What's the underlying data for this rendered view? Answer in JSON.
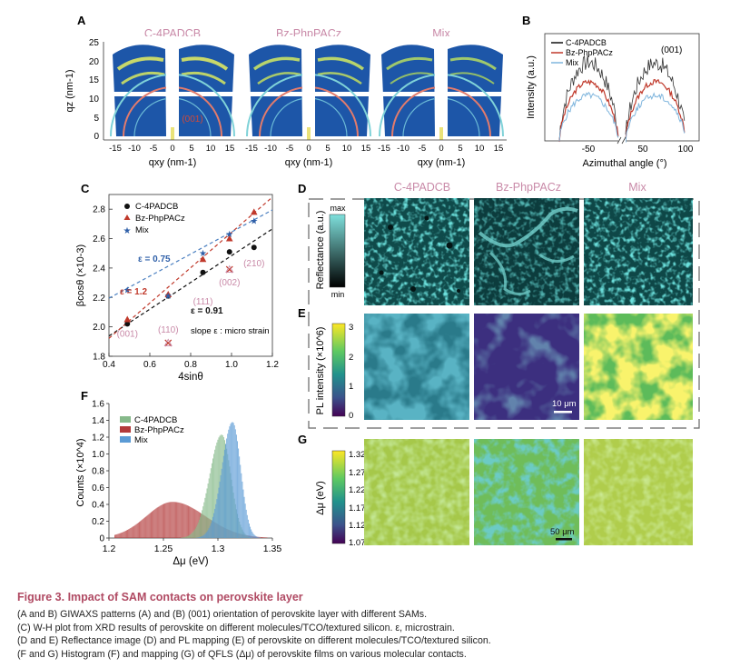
{
  "panel_letters": {
    "A": "A",
    "B": "B",
    "C": "C",
    "D": "D",
    "E": "E",
    "F": "F",
    "G": "G"
  },
  "materials": [
    "C-4PADCB",
    "Bz-PhpPACz",
    "Mix"
  ],
  "colors": {
    "pink_label": "#c98aa8",
    "c4padcb": "#111111",
    "bz": "#c0392b",
    "mix": "#4a7fc0",
    "hist_c4": "#86b98a",
    "hist_bz": "#b23a3a",
    "hist_mix": "#5b9bd5",
    "caption_title": "#b04a63"
  },
  "panelA": {
    "y_label": "qz (nm-1)",
    "x_label": "qxy (nm-1)",
    "y_ticks": [
      "25",
      "20",
      "15",
      "10",
      "5",
      "0"
    ],
    "x_ticks": [
      "-15",
      "-10",
      "-5",
      "0",
      "5",
      "10",
      "15"
    ],
    "annotation": "(001)"
  },
  "panelB": {
    "y_label": "Intensity (a.u.)",
    "x_label": "Azimuthal angle (°)",
    "x_ticks": [
      "-50",
      "50",
      "100"
    ],
    "annotation": "(001)",
    "legend": [
      "C-4PADCB",
      "Bz-PhpPACz",
      "Mix"
    ]
  },
  "panelD": {
    "colorbar_max": "max",
    "colorbar_min": "min",
    "ylabel": "Reflectance (a.u.)"
  },
  "panelE": {
    "ylabel": "PL intensity (×10^6)",
    "colorbar_ticks": [
      "3",
      "2",
      "1",
      "0"
    ],
    "scale_bar": "10 μm"
  },
  "panelG": {
    "ylabel": "Δμ (eV)",
    "colorbar_ticks": [
      "1.32",
      "1.27",
      "1.22",
      "1.17",
      "1.12",
      "1.07"
    ],
    "scale_bar": "50 μm"
  },
  "chart_data": [
    {
      "id": "C",
      "type": "scatter",
      "title": "",
      "xlabel": "4sinθ",
      "ylabel": "βcosθ (×10-3)",
      "xlim": [
        0.4,
        1.2
      ],
      "ylim": [
        1.8,
        2.9
      ],
      "x_ticks": [
        0.4,
        0.6,
        0.8,
        1.0,
        1.2
      ],
      "y_ticks": [
        1.8,
        2.0,
        2.2,
        2.4,
        2.6,
        2.8
      ],
      "series": [
        {
          "name": "C-4PADCB",
          "marker": "circle",
          "x": [
            0.49,
            0.69,
            0.86,
            0.99,
            1.11
          ],
          "y": [
            2.02,
            2.21,
            2.37,
            2.51,
            2.54
          ],
          "fit": {
            "slope": 0.91,
            "intercept": 1.574
          }
        },
        {
          "name": "Bz-PhpPACz",
          "marker": "triangle",
          "x": [
            0.49,
            0.69,
            0.86,
            0.99,
            1.11
          ],
          "y": [
            2.05,
            2.22,
            2.46,
            2.6,
            2.78
          ],
          "fit": {
            "slope": 1.2,
            "intercept": 1.442
          }
        },
        {
          "name": "Mix",
          "marker": "star",
          "x": [
            0.49,
            0.69,
            0.86,
            0.99,
            1.11
          ],
          "y": [
            2.25,
            2.21,
            2.5,
            2.63,
            2.72
          ],
          "fit": {
            "slope": 0.75,
            "intercept": 1.895
          }
        }
      ],
      "outliers": [
        {
          "x": 0.69,
          "y": 1.89
        },
        {
          "x": 0.99,
          "y": 2.39
        }
      ],
      "hkl_labels": [
        {
          "text": "(001)",
          "x": 0.49,
          "y": 1.95
        },
        {
          "text": "(110)",
          "x": 0.69,
          "y": 1.98
        },
        {
          "text": "(111)",
          "x": 0.86,
          "y": 2.17
        },
        {
          "text": "(002)",
          "x": 0.99,
          "y": 2.3
        },
        {
          "text": "(210)",
          "x": 1.11,
          "y": 2.43
        }
      ],
      "epsilon_labels": [
        {
          "text": "ε = 0.75",
          "series": "Mix"
        },
        {
          "text": "ε = 1.2",
          "series": "Bz-PhpPACz"
        },
        {
          "text": "ε = 0.91",
          "series": "C-4PADCB"
        }
      ],
      "annotation": "slope ε : micro strain"
    },
    {
      "id": "F",
      "type": "bar",
      "title": "",
      "xlabel": "Δμ (eV)",
      "ylabel": "Counts (×10^4)",
      "xlim": [
        1.2,
        1.35
      ],
      "ylim": [
        0,
        1.6
      ],
      "x_ticks": [
        1.2,
        1.25,
        1.3,
        1.35
      ],
      "y_ticks": [
        0,
        0.2,
        0.4,
        0.6,
        0.8,
        1.0,
        1.2,
        1.4,
        1.6
      ],
      "series": [
        {
          "name": "C-4PADCB",
          "peak_center": 1.303,
          "peak_height": 1.23,
          "width": 0.0085
        },
        {
          "name": "Bz-PhpPACz",
          "peak_center": 1.258,
          "peak_height": 0.43,
          "width": 0.024
        },
        {
          "name": "Mix",
          "peak_center": 1.313,
          "peak_height": 1.38,
          "width": 0.0075
        }
      ]
    }
  ],
  "caption": {
    "title": "Figure 3.  Impact of SAM contacts on perovskite layer",
    "lines": [
      "(A and B) GIWAXS patterns (A) and (B) (001) orientation of perovskite layer with different SAMs.",
      "(C) W-H plot from XRD results of perovskite on different molecules/TCO/textured silicon. ε, microstrain.",
      "(D and E) Reflectance image (D) and PL mapping (E) of perovskite on different molecules/TCO/textured silicon.",
      "(F and G) Histogram (F) and mapping (G) of QFLS (Δμ) of perovskite films on various molecular contacts."
    ]
  }
}
